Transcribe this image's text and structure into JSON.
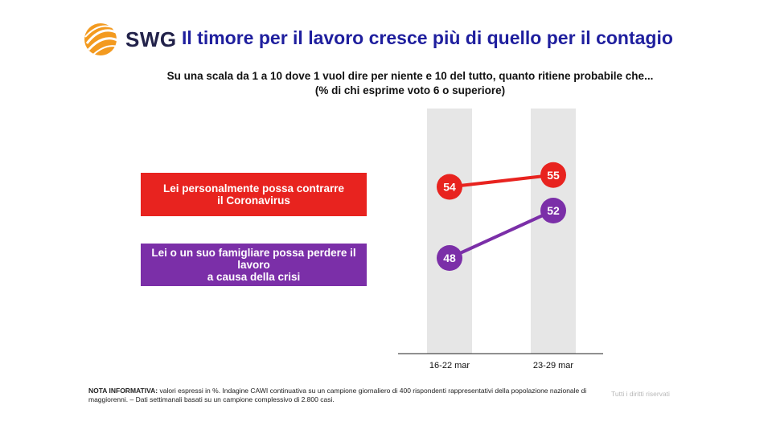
{
  "header": {
    "brand": "SWG",
    "title": "Il timore per il lavoro cresce più di quello per il contagio",
    "subtitle_line1": "Su una scala da 1 a 10 dove 1 vuol dire per niente e 10 del tutto, quanto ritiene probabile che...",
    "subtitle_line2": "(% di chi esprime voto 6 o superiore)"
  },
  "colors": {
    "red": "#e8231f",
    "purple": "#7b2fa8",
    "column": "#e6e6e6",
    "logo_orange": "#f39a1f"
  },
  "chart_data": {
    "type": "line",
    "categories": [
      "16-22 mar",
      "23-29 mar"
    ],
    "series": [
      {
        "name": "Lei personalmente possa contrarre\nil Coronavirus",
        "values": [
          54,
          55
        ],
        "color": "#e8231f"
      },
      {
        "name": "Lei o un suo famigliare possa perdere il lavoro\na causa della crisi",
        "values": [
          48,
          52
        ],
        "color": "#7b2fa8"
      }
    ],
    "ylim": [
      0,
      100
    ],
    "grid": false,
    "legend": "left"
  },
  "footer": {
    "note_label": "NOTA INFORMATIVA:",
    "note_text": "valori espressi in %. Indagine CAWI continuativa su un campione giornaliero di 400 rispondenti rappresentativi della popolazione nazionale di maggiorenni. – Dati settimanali basati su un campione complessivo di 2.800 casi.",
    "rights": "Tutti i diritti riservati"
  }
}
